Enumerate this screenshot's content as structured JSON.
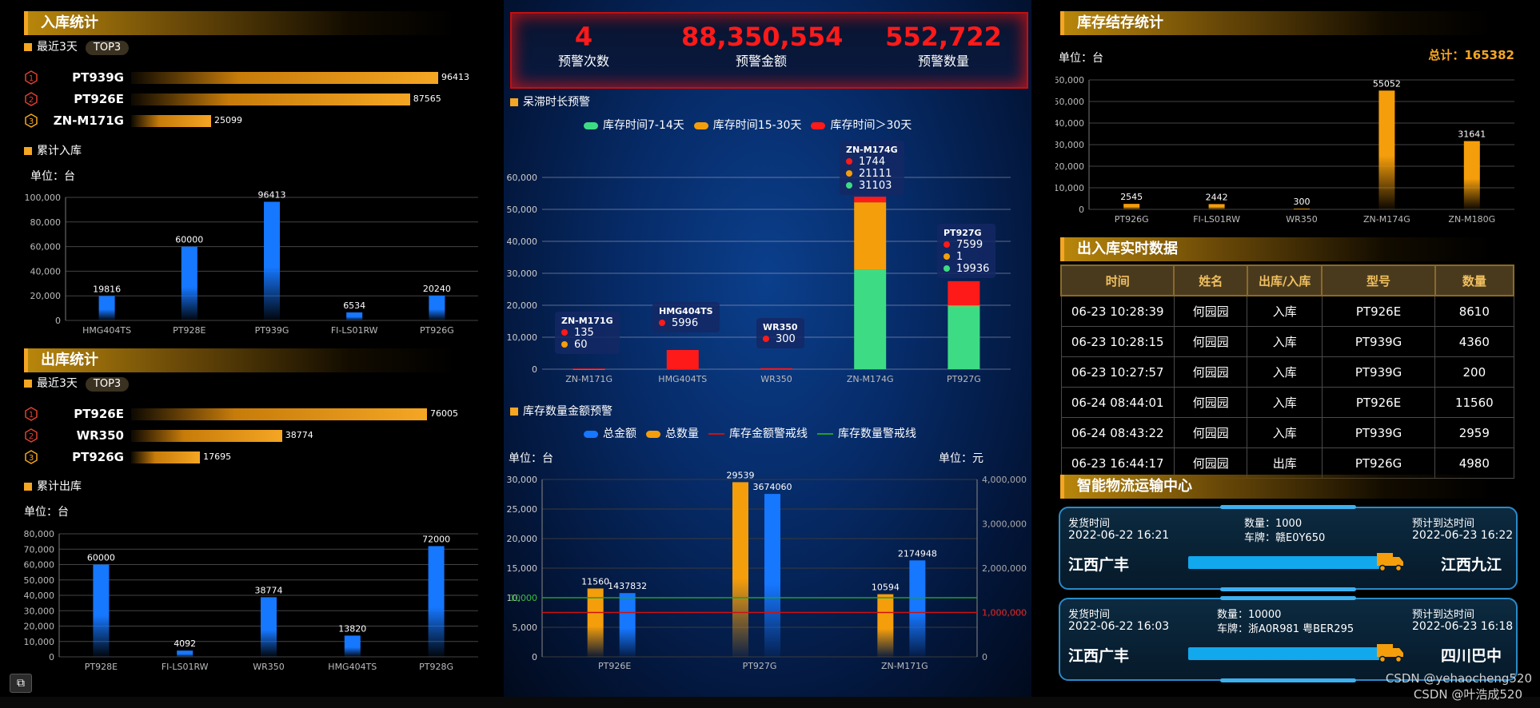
{
  "inbound": {
    "title": "入库统计",
    "recent_label": "最近3天",
    "top3_label": "TOP3",
    "top3": [
      {
        "rank": "1",
        "name": "PT939G",
        "value": 96413
      },
      {
        "rank": "2",
        "name": "PT926E",
        "value": 87565
      },
      {
        "rank": "3",
        "name": "ZN-M171G",
        "value": 25099
      }
    ],
    "cumulative_label": "累计入库",
    "unit": "单位：台"
  },
  "outbound": {
    "title": "出库统计",
    "recent_label": "最近3天",
    "top3_label": "TOP3",
    "top3": [
      {
        "rank": "1",
        "name": "PT926E",
        "value": 76005
      },
      {
        "rank": "2",
        "name": "WR350",
        "value": 38774
      },
      {
        "rank": "3",
        "name": "PT926G",
        "value": 17695
      }
    ],
    "cumulative_label": "累计出库",
    "unit": "单位：台"
  },
  "kpis": [
    {
      "value": "4",
      "label": "预警次数"
    },
    {
      "value": "88,350,554",
      "label": "预警金额"
    },
    {
      "value": "552,722",
      "label": "预警数量"
    }
  ],
  "stagnation": {
    "title": "呆滞时长预警",
    "tooltips": [
      {
        "model": "ZN-M171G",
        "lines": [
          "135",
          "60"
        ],
        "colors": [
          "#ff1a1a",
          "#f59e0b"
        ]
      },
      {
        "model": "HMG404TS",
        "lines": [
          "5996"
        ],
        "colors": [
          "#ff1a1a"
        ]
      },
      {
        "model": "WR350",
        "lines": [
          "300"
        ],
        "colors": [
          "#ff1a1a"
        ]
      },
      {
        "model": "ZN-M174G",
        "lines": [
          "1744",
          "21111",
          "31103"
        ],
        "colors": [
          "#ff1a1a",
          "#f59e0b",
          "#3ddc84"
        ]
      },
      {
        "model": "PT927G",
        "lines": [
          "7599",
          "1",
          "19936"
        ],
        "colors": [
          "#ff1a1a",
          "#f59e0b",
          "#3ddc84"
        ]
      }
    ]
  },
  "stock_value": {
    "title": "库存数量金额预警",
    "unit_left": "单位：台",
    "unit_right": "单位：元"
  },
  "stock_balance": {
    "title": "库存结存统计",
    "unit": "单位：台",
    "total": "总计：165382"
  },
  "realtime": {
    "title": "出入库实时数据",
    "headers": [
      "时间",
      "姓名",
      "出库/入库",
      "型号",
      "数量"
    ],
    "rows": [
      [
        "06-23 10:28:39",
        "何园园",
        "入库",
        "PT926E",
        "8610"
      ],
      [
        "06-23 10:28:15",
        "何园园",
        "入库",
        "PT939G",
        "4360"
      ],
      [
        "06-23 10:27:57",
        "何园园",
        "入库",
        "PT939G",
        "200"
      ],
      [
        "06-24 08:44:01",
        "何园园",
        "入库",
        "PT926E",
        "11560"
      ],
      [
        "06-24 08:43:22",
        "何园园",
        "入库",
        "PT939G",
        "2959"
      ],
      [
        "06-23 16:44:17",
        "何园园",
        "出库",
        "PT926G",
        "4980"
      ]
    ]
  },
  "logistics": {
    "title": "智能物流运输中心",
    "cards": [
      {
        "ship_label": "发货时间",
        "ship_time": "2022-06-22 16:21",
        "qty": "数量：1000",
        "plate": "车牌：赣E0Y650",
        "eta_label": "预计到达时间",
        "eta": "2022-06-23 16:22",
        "from": "江西广丰",
        "to": "江西九江"
      },
      {
        "ship_label": "发货时间",
        "ship_time": "2022-06-22 16:03",
        "qty": "数量：10000",
        "plate": "车牌：浙A0R981 粤BER295",
        "eta_label": "预计到达时间",
        "eta": "2022-06-23 16:18",
        "from": "江西广丰",
        "to": "四川巴中"
      }
    ]
  },
  "watermarks": [
    "CSDN @yehaocheng520",
    "CSDN @叶浩成520"
  ],
  "colors": {
    "accent": "#f5a623",
    "blue": "#1677ff",
    "green": "#3ddc84",
    "red": "#ff1a1a"
  },
  "chart_data": [
    {
      "id": "inbound_cumulative",
      "type": "bar",
      "categories": [
        "HMG404TS",
        "PT928E",
        "PT939G",
        "FI-LS01RW",
        "PT926G"
      ],
      "values": [
        19816,
        60000,
        96413,
        6534,
        20240
      ],
      "ylim": [
        0,
        100000
      ],
      "yticks": [
        0,
        20000,
        40000,
        60000,
        80000,
        100000
      ],
      "ytick_labels": [
        "0",
        "20,000",
        "40,000",
        "60,000",
        "80,000",
        "100,000"
      ],
      "color": "#1677ff"
    },
    {
      "id": "outbound_cumulative",
      "type": "bar",
      "categories": [
        "PT928E",
        "FI-LS01RW",
        "WR350",
        "HMG404TS",
        "PT928G"
      ],
      "values": [
        60000,
        4092,
        38774,
        13820,
        72000
      ],
      "ylim": [
        0,
        80000
      ],
      "yticks": [
        0,
        10000,
        20000,
        30000,
        40000,
        50000,
        60000,
        70000,
        80000
      ],
      "ytick_labels": [
        "0",
        "10,000",
        "20,000",
        "30,000",
        "40,000",
        "50,000",
        "60,000",
        "70,000",
        "80,000"
      ],
      "color": "#1677ff"
    },
    {
      "id": "stagnation_stack",
      "type": "bar",
      "stacked": true,
      "categories": [
        "ZN-M171G",
        "HMG404TS",
        "WR350",
        "ZN-M174G",
        "PT927G"
      ],
      "series": [
        {
          "name": "库存时间7-14天",
          "color": "#3ddc84",
          "values": [
            0,
            0,
            0,
            31103,
            19936
          ]
        },
        {
          "name": "库存时间15-30天",
          "color": "#f59e0b",
          "values": [
            60,
            0,
            0,
            21111,
            1
          ]
        },
        {
          "name": "库存时间＞30天",
          "color": "#ff1a1a",
          "values": [
            135,
            5996,
            300,
            1744,
            7599
          ]
        }
      ],
      "ylim": [
        0,
        60000
      ],
      "yticks": [
        0,
        10000,
        20000,
        30000,
        40000,
        50000,
        60000
      ],
      "ytick_labels": [
        "0",
        "10,000",
        "20,000",
        "30,000",
        "40,000",
        "50,000",
        "60,000"
      ]
    },
    {
      "id": "stock_value_dual",
      "type": "bar",
      "categories": [
        "PT926E",
        "PT927G",
        "ZN-M171G"
      ],
      "series": [
        {
          "name": "总金额",
          "color": "#1677ff",
          "axis": "right",
          "values": [
            1437832,
            3674060,
            2174948
          ]
        },
        {
          "name": "总数量",
          "color": "#f59e0b",
          "axis": "left",
          "values": [
            11560,
            29539,
            10594
          ]
        }
      ],
      "lines": [
        {
          "name": "库存金额警戒线",
          "color": "#d01010",
          "axis": "right",
          "value": 1000000,
          "label": "1,000,000"
        },
        {
          "name": "库存数量警戒线",
          "color": "#1fa02a",
          "axis": "left",
          "value": 10000,
          "label": "10000"
        }
      ],
      "ylim_left": [
        0,
        30000
      ],
      "yticks_left": [
        0,
        5000,
        10000,
        15000,
        20000,
        25000,
        30000
      ],
      "ytick_labels_left": [
        "0",
        "5,000",
        "10,000",
        "15,000",
        "20,000",
        "25,000",
        "30,000"
      ],
      "ylim_right": [
        0,
        4000000
      ],
      "yticks_right": [
        0,
        1000000,
        2000000,
        3000000,
        4000000
      ],
      "ytick_labels_right": [
        "0",
        "1,000,000",
        "2,000,000",
        "3,000,000",
        "4,000,000"
      ]
    },
    {
      "id": "stock_balance",
      "type": "bar",
      "categories": [
        "PT926G",
        "FI-LS01RW",
        "WR350",
        "ZN-M174G",
        "ZN-M180G"
      ],
      "values": [
        2545,
        2442,
        300,
        55052,
        31641
      ],
      "ylim": [
        0,
        60000
      ],
      "yticks": [
        0,
        10000,
        20000,
        30000,
        40000,
        50000,
        60000
      ],
      "ytick_labels": [
        "0",
        "10,000",
        "20,000",
        "30,000",
        "40,000",
        "50,000",
        "60,000"
      ],
      "color": "#f59e0b"
    }
  ]
}
